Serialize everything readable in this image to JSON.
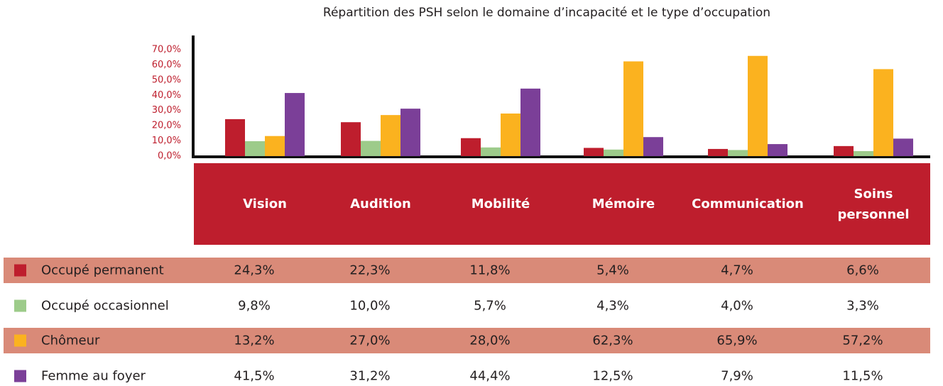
{
  "chart_data": {
    "type": "bar",
    "title": "Répartition des PSH selon le domaine d’incapacité et le type d’occupation",
    "categories": [
      "Vision",
      "Audition",
      "Mobilité",
      "Mémoire",
      "Communication",
      "Soins personnel"
    ],
    "series": [
      {
        "name": "Occupé permanent",
        "color": "#be1e2d",
        "values": [
          24.3,
          22.3,
          11.8,
          5.4,
          4.7,
          6.6
        ],
        "value_labels": [
          "24,3%",
          "22,3%",
          "11,8%",
          "5,4%",
          "4,7%",
          "6,6%"
        ]
      },
      {
        "name": "Occupé occasionnel",
        "color": "#9dcb8a",
        "values": [
          9.8,
          10.0,
          5.7,
          4.3,
          4.0,
          3.3
        ],
        "value_labels": [
          "9,8%",
          "10,0%",
          "5,7%",
          "4,3%",
          "4,0%",
          "3,3%"
        ]
      },
      {
        "name": "Chômeur",
        "color": "#fbb21f",
        "values": [
          13.2,
          27.0,
          28.0,
          62.3,
          65.9,
          57.2
        ],
        "value_labels": [
          "13,2%",
          "27,0%",
          "28,0%",
          "62,3%",
          "65,9%",
          "57,2%"
        ]
      },
      {
        "name": "Femme au foyer",
        "color": "#7b3f98",
        "values": [
          41.5,
          31.2,
          44.4,
          12.5,
          7.9,
          11.5
        ],
        "value_labels": [
          "41,5%",
          "31,2%",
          "44,4%",
          "12,5%",
          "7,9%",
          "11,5%"
        ]
      }
    ],
    "ylim": [
      0,
      70
    ],
    "yticks": [
      {
        "value": 0,
        "label": "0,0%"
      },
      {
        "value": 10,
        "label": "10,0%"
      },
      {
        "value": 20,
        "label": "20,0%"
      },
      {
        "value": 30,
        "label": "30,0%"
      },
      {
        "value": 40,
        "label": "40,0%"
      },
      {
        "value": 50,
        "label": "50,0%"
      },
      {
        "value": 60,
        "label": "60,0%"
      },
      {
        "value": 70,
        "label": "70,0%"
      }
    ]
  }
}
